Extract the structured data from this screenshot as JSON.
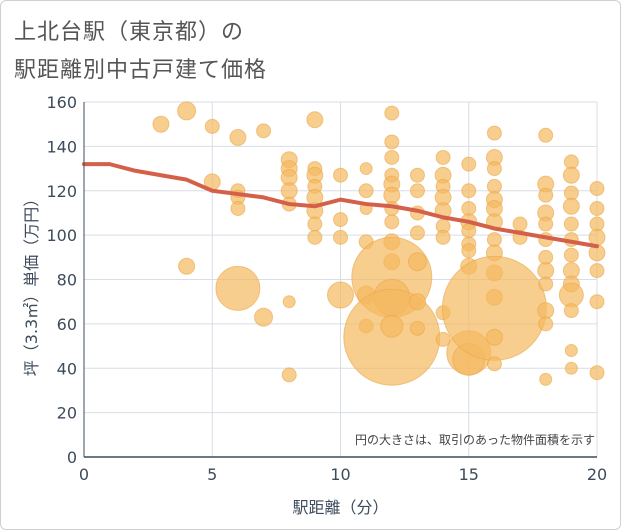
{
  "title_line1": "上北台駅（東京都）の",
  "title_line2": "駅距離別中古戸建て価格",
  "chart_data": {
    "type": "scatter",
    "title": "上北台駅（東京都）の駅距離別中古戸建て価格",
    "xlabel": "駅距離（分）",
    "ylabel": "坪（3.3㎡）単価（万円）",
    "xlim": [
      0,
      20
    ],
    "ylim": [
      0,
      160
    ],
    "xticks": [
      0,
      5,
      10,
      15,
      20
    ],
    "yticks": [
      0,
      20,
      40,
      60,
      80,
      100,
      120,
      140,
      160
    ],
    "grid": true,
    "annotation": "円の大きさは、取引のあった物件面積を示す",
    "colors": {
      "bubble": "#f5b95f",
      "bubble_stroke": "#e9a64a",
      "trend": "#d4604a",
      "grid": "#d8dde6",
      "axis": "#3d4b5c"
    },
    "bubbles": [
      {
        "x": 3,
        "y": 150,
        "s": 8
      },
      {
        "x": 4,
        "y": 156,
        "s": 9
      },
      {
        "x": 5,
        "y": 149,
        "s": 7
      },
      {
        "x": 5,
        "y": 124,
        "s": 8
      },
      {
        "x": 4,
        "y": 86,
        "s": 8
      },
      {
        "x": 6,
        "y": 144,
        "s": 8
      },
      {
        "x": 6,
        "y": 120,
        "s": 7
      },
      {
        "x": 6,
        "y": 117,
        "s": 7
      },
      {
        "x": 6,
        "y": 112,
        "s": 7
      },
      {
        "x": 6,
        "y": 76,
        "s": 22
      },
      {
        "x": 7,
        "y": 147,
        "s": 7
      },
      {
        "x": 7,
        "y": 63,
        "s": 9
      },
      {
        "x": 8,
        "y": 134,
        "s": 8
      },
      {
        "x": 8,
        "y": 130,
        "s": 8
      },
      {
        "x": 8,
        "y": 126,
        "s": 8
      },
      {
        "x": 8,
        "y": 120,
        "s": 8
      },
      {
        "x": 8,
        "y": 114,
        "s": 7
      },
      {
        "x": 8,
        "y": 70,
        "s": 6
      },
      {
        "x": 8,
        "y": 37,
        "s": 7
      },
      {
        "x": 9,
        "y": 152,
        "s": 8
      },
      {
        "x": 9,
        "y": 130,
        "s": 7
      },
      {
        "x": 9,
        "y": 127,
        "s": 8
      },
      {
        "x": 9,
        "y": 122,
        "s": 7
      },
      {
        "x": 9,
        "y": 117,
        "s": 8
      },
      {
        "x": 9,
        "y": 111,
        "s": 8
      },
      {
        "x": 9,
        "y": 105,
        "s": 7
      },
      {
        "x": 9,
        "y": 99,
        "s": 7
      },
      {
        "x": 10,
        "y": 127,
        "s": 7
      },
      {
        "x": 10,
        "y": 107,
        "s": 7
      },
      {
        "x": 10,
        "y": 99,
        "s": 7
      },
      {
        "x": 10,
        "y": 73,
        "s": 13
      },
      {
        "x": 11,
        "y": 130,
        "s": 6
      },
      {
        "x": 11,
        "y": 120,
        "s": 7
      },
      {
        "x": 11,
        "y": 112,
        "s": 6
      },
      {
        "x": 11,
        "y": 97,
        "s": 7
      },
      {
        "x": 11,
        "y": 73,
        "s": 9
      },
      {
        "x": 11,
        "y": 59,
        "s": 7
      },
      {
        "x": 12,
        "y": 155,
        "s": 7
      },
      {
        "x": 12,
        "y": 142,
        "s": 7
      },
      {
        "x": 12,
        "y": 135,
        "s": 7
      },
      {
        "x": 12,
        "y": 127,
        "s": 7
      },
      {
        "x": 12,
        "y": 123,
        "s": 8
      },
      {
        "x": 12,
        "y": 118,
        "s": 8
      },
      {
        "x": 12,
        "y": 112,
        "s": 7
      },
      {
        "x": 12,
        "y": 106,
        "s": 7
      },
      {
        "x": 12,
        "y": 97,
        "s": 8
      },
      {
        "x": 12,
        "y": 88,
        "s": 8
      },
      {
        "x": 12,
        "y": 81,
        "s": 40
      },
      {
        "x": 12,
        "y": 72,
        "s": 18
      },
      {
        "x": 12,
        "y": 54,
        "s": 48
      },
      {
        "x": 12,
        "y": 59,
        "s": 11
      },
      {
        "x": 13,
        "y": 127,
        "s": 7
      },
      {
        "x": 13,
        "y": 120,
        "s": 7
      },
      {
        "x": 13,
        "y": 110,
        "s": 7
      },
      {
        "x": 13,
        "y": 101,
        "s": 7
      },
      {
        "x": 13,
        "y": 88,
        "s": 9
      },
      {
        "x": 13,
        "y": 70,
        "s": 8
      },
      {
        "x": 13,
        "y": 58,
        "s": 7
      },
      {
        "x": 14,
        "y": 135,
        "s": 7
      },
      {
        "x": 14,
        "y": 127,
        "s": 8
      },
      {
        "x": 14,
        "y": 122,
        "s": 7
      },
      {
        "x": 14,
        "y": 117,
        "s": 8
      },
      {
        "x": 14,
        "y": 111,
        "s": 8
      },
      {
        "x": 14,
        "y": 104,
        "s": 7
      },
      {
        "x": 14,
        "y": 99,
        "s": 7
      },
      {
        "x": 14,
        "y": 65,
        "s": 7
      },
      {
        "x": 14,
        "y": 53,
        "s": 7
      },
      {
        "x": 15,
        "y": 132,
        "s": 7
      },
      {
        "x": 15,
        "y": 120,
        "s": 7
      },
      {
        "x": 15,
        "y": 112,
        "s": 7
      },
      {
        "x": 15,
        "y": 106,
        "s": 8
      },
      {
        "x": 15,
        "y": 102,
        "s": 7
      },
      {
        "x": 15,
        "y": 96,
        "s": 7
      },
      {
        "x": 15,
        "y": 93,
        "s": 7
      },
      {
        "x": 15,
        "y": 86,
        "s": 8
      },
      {
        "x": 15,
        "y": 47,
        "s": 22
      },
      {
        "x": 15,
        "y": 44,
        "s": 16
      },
      {
        "x": 16,
        "y": 146,
        "s": 7
      },
      {
        "x": 16,
        "y": 135,
        "s": 8
      },
      {
        "x": 16,
        "y": 130,
        "s": 7
      },
      {
        "x": 16,
        "y": 122,
        "s": 7
      },
      {
        "x": 16,
        "y": 116,
        "s": 8
      },
      {
        "x": 16,
        "y": 112,
        "s": 8
      },
      {
        "x": 16,
        "y": 106,
        "s": 8
      },
      {
        "x": 16,
        "y": 98,
        "s": 7
      },
      {
        "x": 16,
        "y": 92,
        "s": 8
      },
      {
        "x": 16,
        "y": 83,
        "s": 8
      },
      {
        "x": 16,
        "y": 72,
        "s": 8
      },
      {
        "x": 16,
        "y": 67,
        "s": 52
      },
      {
        "x": 16,
        "y": 54,
        "s": 8
      },
      {
        "x": 16,
        "y": 42,
        "s": 7
      },
      {
        "x": 17,
        "y": 105,
        "s": 7
      },
      {
        "x": 17,
        "y": 99,
        "s": 7
      },
      {
        "x": 18,
        "y": 145,
        "s": 7
      },
      {
        "x": 18,
        "y": 123,
        "s": 8
      },
      {
        "x": 18,
        "y": 118,
        "s": 7
      },
      {
        "x": 18,
        "y": 110,
        "s": 8
      },
      {
        "x": 18,
        "y": 105,
        "s": 7
      },
      {
        "x": 18,
        "y": 98,
        "s": 7
      },
      {
        "x": 18,
        "y": 90,
        "s": 7
      },
      {
        "x": 18,
        "y": 84,
        "s": 8
      },
      {
        "x": 18,
        "y": 78,
        "s": 7
      },
      {
        "x": 18,
        "y": 66,
        "s": 8
      },
      {
        "x": 18,
        "y": 60,
        "s": 7
      },
      {
        "x": 18,
        "y": 35,
        "s": 6
      },
      {
        "x": 19,
        "y": 133,
        "s": 7
      },
      {
        "x": 19,
        "y": 127,
        "s": 8
      },
      {
        "x": 19,
        "y": 119,
        "s": 7
      },
      {
        "x": 19,
        "y": 113,
        "s": 8
      },
      {
        "x": 19,
        "y": 105,
        "s": 7
      },
      {
        "x": 19,
        "y": 98,
        "s": 7
      },
      {
        "x": 19,
        "y": 91,
        "s": 7
      },
      {
        "x": 19,
        "y": 84,
        "s": 8
      },
      {
        "x": 19,
        "y": 78,
        "s": 8
      },
      {
        "x": 19,
        "y": 73,
        "s": 12
      },
      {
        "x": 19,
        "y": 66,
        "s": 7
      },
      {
        "x": 19,
        "y": 48,
        "s": 6
      },
      {
        "x": 19,
        "y": 40,
        "s": 6
      },
      {
        "x": 20,
        "y": 121,
        "s": 7
      },
      {
        "x": 20,
        "y": 112,
        "s": 7
      },
      {
        "x": 20,
        "y": 105,
        "s": 7
      },
      {
        "x": 20,
        "y": 99,
        "s": 8
      },
      {
        "x": 20,
        "y": 92,
        "s": 8
      },
      {
        "x": 20,
        "y": 84,
        "s": 7
      },
      {
        "x": 20,
        "y": 70,
        "s": 7
      },
      {
        "x": 20,
        "y": 38,
        "s": 7
      }
    ],
    "trend": {
      "x": [
        0,
        1,
        2,
        3,
        4,
        5,
        6,
        7,
        8,
        9,
        10,
        11,
        12,
        13,
        14,
        15,
        16,
        17,
        18,
        19,
        20
      ],
      "y": [
        132,
        132,
        129,
        127,
        125,
        120,
        118.5,
        117,
        114,
        113,
        116,
        114,
        113,
        111,
        108,
        106,
        103,
        101,
        99,
        97,
        95
      ]
    }
  }
}
